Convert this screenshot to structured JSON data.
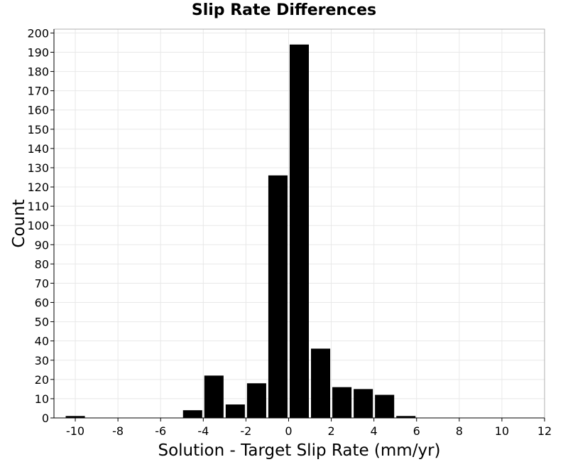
{
  "chart_data": {
    "type": "bar",
    "title": "Slip Rate Differences",
    "xlabel": "Solution - Target Slip Rate (mm/yr)",
    "ylabel": "Count",
    "xlim": [
      -11,
      12
    ],
    "ylim": [
      0,
      202
    ],
    "x_ticks": [
      -10,
      -8,
      -6,
      -4,
      -2,
      0,
      2,
      4,
      6,
      8,
      10,
      12
    ],
    "y_ticks": [
      0,
      10,
      20,
      30,
      40,
      50,
      60,
      70,
      80,
      90,
      100,
      110,
      120,
      130,
      140,
      150,
      160,
      170,
      180,
      190,
      200
    ],
    "bin_width": 1,
    "bin_centers": [
      -10,
      -4.5,
      -3.5,
      -2.5,
      -1.5,
      -0.5,
      0.5,
      1.5,
      2.5,
      3.5,
      4.5,
      5.5
    ],
    "values": [
      1,
      4,
      22,
      7,
      18,
      126,
      194,
      36,
      16,
      15,
      12,
      1
    ],
    "bar_color": "#000000",
    "grid": true,
    "legend": "none"
  }
}
